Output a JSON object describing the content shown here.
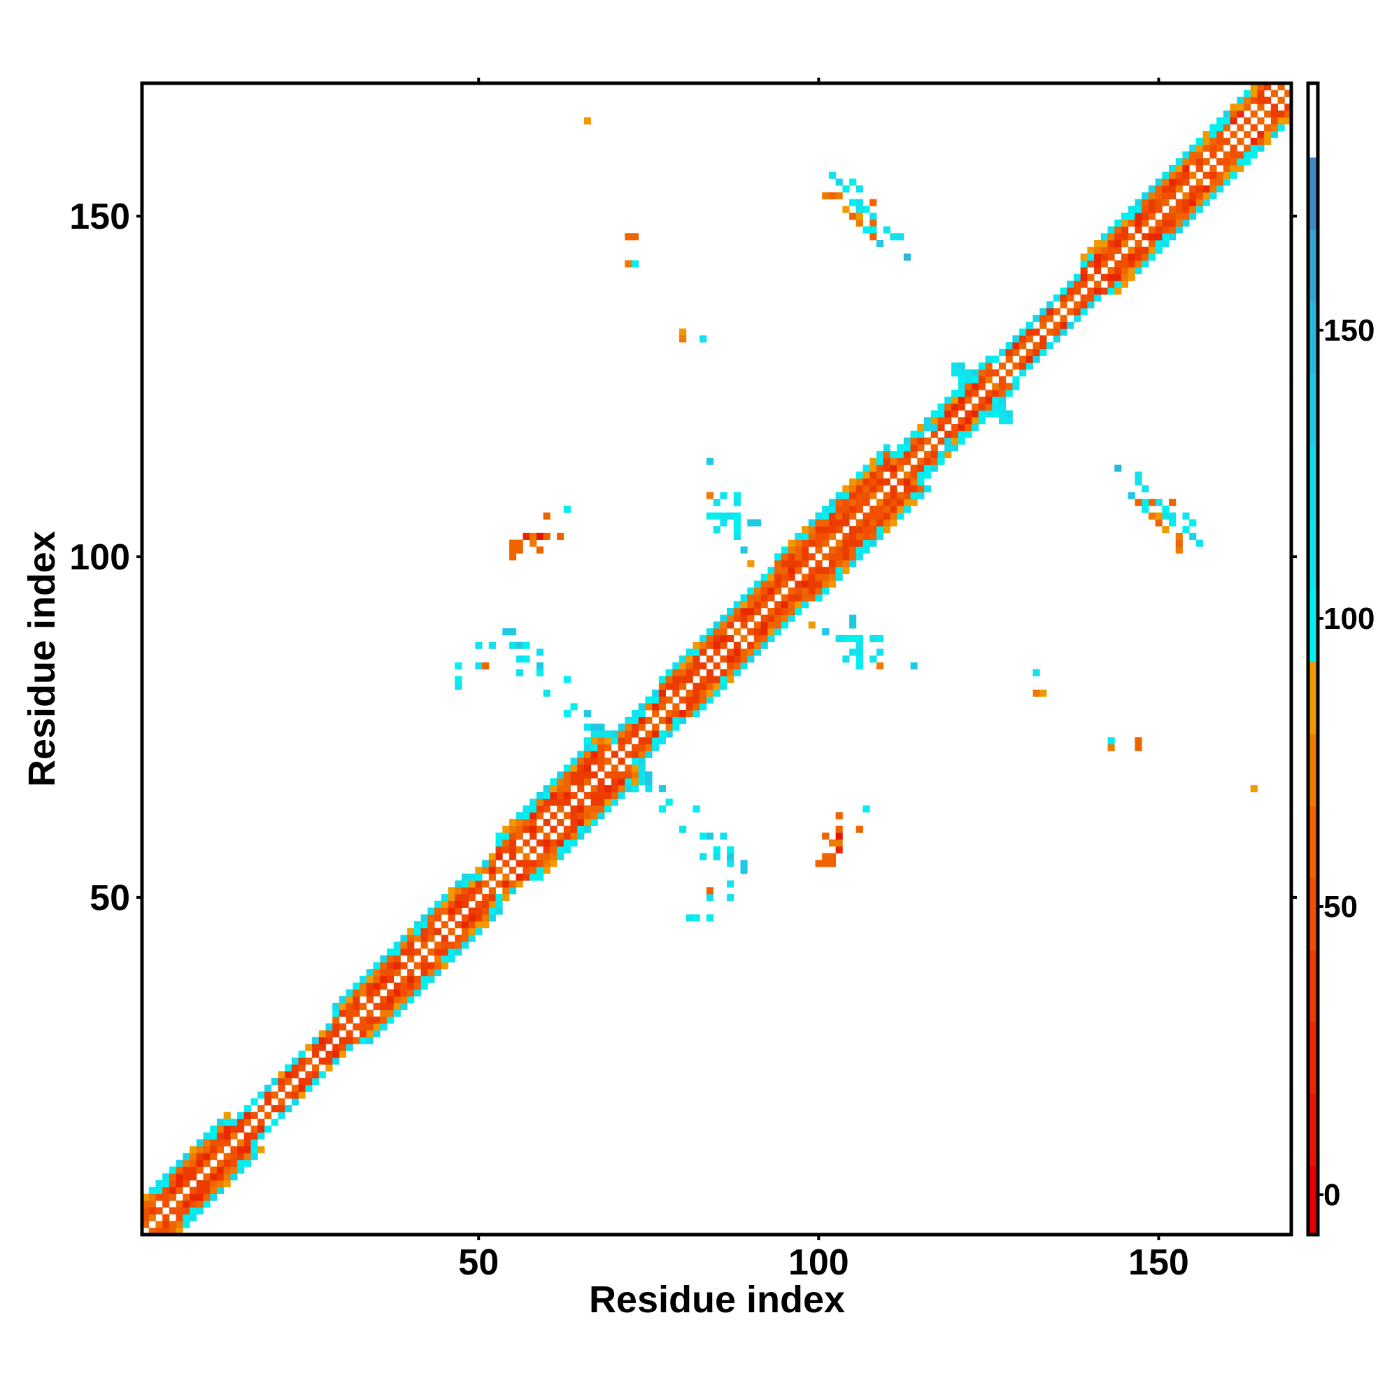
{
  "chart_data": {
    "type": "heatmap",
    "title": "",
    "xlabel": "Residue index",
    "ylabel": "Residue index",
    "n_residues": 169,
    "xlim": [
      0.5,
      169.5
    ],
    "ylim": [
      0.5,
      169.5
    ],
    "xticks": [
      "50",
      "100",
      "150"
    ],
    "yticks": [
      "50",
      "100",
      "150"
    ],
    "xtick_values": [
      50,
      100,
      150
    ],
    "ytick_values": [
      50,
      100,
      150
    ],
    "symmetric": true,
    "colorbar": {
      "range": [
        -7.5,
        192.5
      ],
      "ticks": [
        "0",
        "50",
        "100",
        "150"
      ],
      "tick_values": [
        0,
        50,
        100,
        150
      ],
      "bin_width": 12.5,
      "colors": [
        "#e60000",
        "#e81400",
        "#ea2800",
        "#ed3c00",
        "#f05000",
        "#f06400",
        "#f07a00",
        "#f09a00",
        "#00f0f0",
        "#10e2ee",
        "#18d6ea",
        "#20c8e4",
        "#28b8dc",
        "#34a4d2",
        "#4486c4",
        "#ffffff"
      ]
    },
    "diagonal_band": {
      "description_rule": "value by distance from diagonal",
      "segments_start_end_halfwidth": [
        [
          1,
          13,
          5
        ],
        [
          14,
          28,
          3
        ],
        [
          29,
          48,
          5
        ],
        [
          49,
          52,
          4
        ],
        [
          53,
          68,
          6
        ],
        [
          69,
          76,
          4
        ],
        [
          77,
          93,
          5
        ],
        [
          94,
          110,
          6
        ],
        [
          111,
          125,
          4
        ],
        [
          126,
          138,
          3
        ],
        [
          139,
          169,
          5
        ]
      ]
    },
    "contacts_i_j_value": [
      [
        66,
        164,
        90
      ],
      [
        72,
        147,
        65
      ],
      [
        73,
        147,
        65
      ],
      [
        72,
        143,
        70
      ],
      [
        73,
        143,
        95
      ],
      [
        80,
        133,
        90
      ],
      [
        80,
        132,
        70
      ],
      [
        83,
        132,
        110
      ],
      [
        102,
        156,
        110
      ],
      [
        103,
        155,
        120
      ],
      [
        105,
        155,
        95
      ],
      [
        101,
        153,
        70
      ],
      [
        102,
        153,
        65
      ],
      [
        103,
        153,
        70
      ],
      [
        104,
        154,
        95
      ],
      [
        106,
        154,
        110
      ],
      [
        105,
        152,
        100
      ],
      [
        106,
        152,
        115
      ],
      [
        108,
        152,
        65
      ],
      [
        104,
        151,
        90
      ],
      [
        106,
        151,
        110
      ],
      [
        107,
        151,
        95
      ],
      [
        105,
        150,
        60
      ],
      [
        106,
        150,
        90
      ],
      [
        108,
        150,
        110
      ],
      [
        106,
        149,
        70
      ],
      [
        108,
        149,
        60
      ],
      [
        107,
        148,
        95
      ],
      [
        108,
        148,
        95
      ],
      [
        110,
        148,
        110
      ],
      [
        108,
        147,
        65
      ],
      [
        111,
        147,
        110
      ],
      [
        112,
        147,
        110
      ],
      [
        109,
        146,
        140
      ],
      [
        113,
        144,
        150
      ],
      [
        84,
        114,
        140
      ],
      [
        84,
        109,
        70
      ],
      [
        86,
        109,
        110
      ],
      [
        88,
        109,
        95
      ],
      [
        85,
        108,
        110
      ],
      [
        88,
        108,
        110
      ],
      [
        84,
        106,
        95
      ],
      [
        85,
        106,
        95
      ],
      [
        86,
        106,
        110
      ],
      [
        87,
        106,
        110
      ],
      [
        88,
        106,
        95
      ],
      [
        86,
        105,
        110
      ],
      [
        88,
        105,
        95
      ],
      [
        90,
        105,
        140
      ],
      [
        91,
        105,
        140
      ],
      [
        85,
        104,
        110
      ],
      [
        88,
        104,
        95
      ],
      [
        88,
        103,
        110
      ],
      [
        89,
        101,
        140
      ],
      [
        90,
        99,
        90
      ],
      [
        60,
        106,
        60
      ],
      [
        63,
        107,
        95
      ],
      [
        57,
        103,
        20
      ],
      [
        58,
        103,
        70
      ],
      [
        59,
        103,
        10
      ],
      [
        60,
        103,
        60
      ],
      [
        62,
        103,
        60
      ],
      [
        55,
        102,
        60
      ],
      [
        56,
        102,
        60
      ],
      [
        58,
        102,
        70
      ],
      [
        55,
        101,
        60
      ],
      [
        56,
        101,
        65
      ],
      [
        59,
        101,
        65
      ],
      [
        55,
        100,
        65
      ],
      [
        54,
        89,
        140
      ],
      [
        55,
        89,
        140
      ],
      [
        50,
        87,
        110
      ],
      [
        52,
        87,
        110
      ],
      [
        55,
        87,
        110
      ],
      [
        56,
        87,
        140
      ],
      [
        57,
        87,
        95
      ],
      [
        59,
        86,
        110
      ],
      [
        56,
        85,
        110
      ],
      [
        57,
        85,
        95
      ],
      [
        59,
        84,
        140
      ],
      [
        47,
        84,
        95
      ],
      [
        50,
        84,
        110
      ],
      [
        51,
        84,
        60
      ],
      [
        56,
        83,
        110
      ],
      [
        59,
        83,
        95
      ],
      [
        47,
        82,
        95
      ],
      [
        63,
        82,
        95
      ],
      [
        47,
        81,
        110
      ],
      [
        60,
        80,
        110
      ],
      [
        64,
        78,
        95
      ],
      [
        63,
        77,
        95
      ],
      [
        66,
        77,
        140
      ],
      [
        66,
        75,
        110
      ],
      [
        67,
        75,
        140
      ],
      [
        68,
        75,
        140
      ],
      [
        67,
        74,
        110
      ],
      [
        68,
        74,
        110
      ],
      [
        69,
        74,
        110
      ],
      [
        66,
        73,
        95
      ],
      [
        120,
        128,
        110
      ],
      [
        121,
        128,
        120
      ],
      [
        120,
        127,
        110
      ],
      [
        121,
        127,
        110
      ],
      [
        122,
        127,
        110
      ],
      [
        121,
        126,
        95
      ],
      [
        122,
        126,
        110
      ],
      [
        115,
        118,
        110
      ],
      [
        116,
        119,
        120
      ],
      [
        117,
        119,
        120
      ]
    ]
  }
}
